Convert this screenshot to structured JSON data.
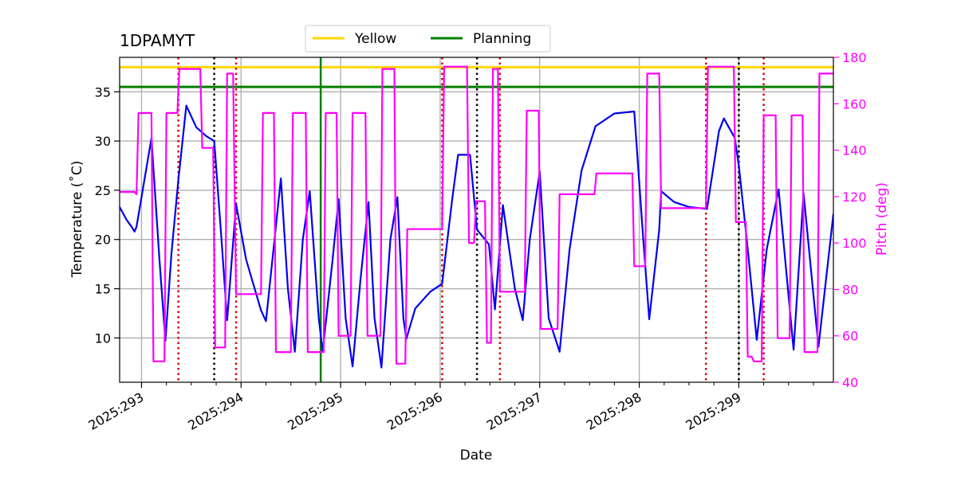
{
  "chart_data": {
    "type": "line",
    "title": "1DPAMYT",
    "xlabel": "Date",
    "ylabel": "Temperature ($^\\circ$C)",
    "ylabel_display": "Temperature (˚C)",
    "y2label": "Pitch (deg)",
    "x_unit": "day-of-year 2025",
    "xlim": [
      292.78,
      299.95
    ],
    "ylim": [
      5.5,
      38.5
    ],
    "y2lim": [
      40,
      180
    ],
    "grid": true,
    "legend_position": "top-center",
    "x_ticks": [
      293,
      294,
      295,
      296,
      297,
      298,
      299
    ],
    "x_tick_labels": [
      "2025:293",
      "2025:294",
      "2025:295",
      "2025:296",
      "2025:297",
      "2025:298",
      "2025:299"
    ],
    "y_ticks": [
      10,
      15,
      20,
      25,
      30,
      35
    ],
    "y2_ticks": [
      40,
      60,
      80,
      100,
      120,
      140,
      160,
      180
    ],
    "colors": {
      "temperature": "#0000ee",
      "pitch": "#ff00ff",
      "yellow": "#ffd700",
      "planning": "#008000",
      "red_markers": "#dd0000",
      "black_markers": "#000000",
      "grid": "#b0b0b0"
    },
    "limit_lines": [
      {
        "name": "Yellow",
        "y": 37.5,
        "color": "#ffd700"
      },
      {
        "name": "Planning",
        "y": 35.5,
        "color": "#008000"
      }
    ],
    "now_line": {
      "x": 294.8,
      "color": "#008000"
    },
    "red_dotted_lines": [
      293.37,
      293.95,
      296.02,
      296.6,
      298.67,
      299.25
    ],
    "black_dotted_lines": [
      293.73,
      296.37,
      299.0
    ],
    "legend": [
      "Yellow",
      "Planning"
    ],
    "series": [
      {
        "name": "",
        "axis": "left",
        "color": "#0000ee",
        "points": [
          [
            292.78,
            23.3
          ],
          [
            292.85,
            22.0
          ],
          [
            292.9,
            21.3
          ],
          [
            292.93,
            20.8
          ],
          [
            292.95,
            21.3
          ],
          [
            293.1,
            30.3
          ],
          [
            293.18,
            18.0
          ],
          [
            293.24,
            9.7
          ],
          [
            293.3,
            18.5
          ],
          [
            293.37,
            26.0
          ],
          [
            293.45,
            33.6
          ],
          [
            293.55,
            31.4
          ],
          [
            293.65,
            30.5
          ],
          [
            293.73,
            30.0
          ],
          [
            293.8,
            20.5
          ],
          [
            293.86,
            11.8
          ],
          [
            293.95,
            23.6
          ],
          [
            294.05,
            18.0
          ],
          [
            294.2,
            12.8
          ],
          [
            294.25,
            11.7
          ],
          [
            294.4,
            26.2
          ],
          [
            294.47,
            15.0
          ],
          [
            294.54,
            8.6
          ],
          [
            294.62,
            20.0
          ],
          [
            294.69,
            24.9
          ],
          [
            294.78,
            12.0
          ],
          [
            294.82,
            8.6
          ],
          [
            294.92,
            18.0
          ],
          [
            294.98,
            24.1
          ],
          [
            295.05,
            12.0
          ],
          [
            295.12,
            7.1
          ],
          [
            295.2,
            16.0
          ],
          [
            295.28,
            23.8
          ],
          [
            295.34,
            12.0
          ],
          [
            295.41,
            7.0
          ],
          [
            295.5,
            20.0
          ],
          [
            295.57,
            24.3
          ],
          [
            295.63,
            12.0
          ],
          [
            295.66,
            9.9
          ],
          [
            295.75,
            13.0
          ],
          [
            295.9,
            14.7
          ],
          [
            296.02,
            15.5
          ],
          [
            296.12,
            24.0
          ],
          [
            296.18,
            28.6
          ],
          [
            296.3,
            28.6
          ],
          [
            296.37,
            21.0
          ],
          [
            296.45,
            20.0
          ],
          [
            296.49,
            19.5
          ],
          [
            296.55,
            12.9
          ],
          [
            296.63,
            23.5
          ],
          [
            296.75,
            15.0
          ],
          [
            296.83,
            11.8
          ],
          [
            296.9,
            20.0
          ],
          [
            297.0,
            26.9
          ],
          [
            297.09,
            12.0
          ],
          [
            297.2,
            8.6
          ],
          [
            297.3,
            19.0
          ],
          [
            297.42,
            27.0
          ],
          [
            297.56,
            31.5
          ],
          [
            297.75,
            32.8
          ],
          [
            297.95,
            33.0
          ],
          [
            298.04,
            20.0
          ],
          [
            298.1,
            11.9
          ],
          [
            298.2,
            21.0
          ],
          [
            298.22,
            24.9
          ],
          [
            298.35,
            23.8
          ],
          [
            298.5,
            23.3
          ],
          [
            298.68,
            23.1
          ],
          [
            298.8,
            31.0
          ],
          [
            298.85,
            32.3
          ],
          [
            298.96,
            30.3
          ],
          [
            299.0,
            27.5
          ],
          [
            299.08,
            20.0
          ],
          [
            299.18,
            9.8
          ],
          [
            299.28,
            19.0
          ],
          [
            299.4,
            25.1
          ],
          [
            299.55,
            8.8
          ],
          [
            299.65,
            24.7
          ],
          [
            299.8,
            9.1
          ],
          [
            299.95,
            22.6
          ]
        ]
      },
      {
        "name": "",
        "axis": "right",
        "color": "#ff00ff",
        "points": [
          [
            292.78,
            122
          ],
          [
            292.93,
            122
          ],
          [
            292.95,
            121
          ],
          [
            292.97,
            156
          ],
          [
            293.1,
            156
          ],
          [
            293.12,
            49
          ],
          [
            293.23,
            49
          ],
          [
            293.25,
            156
          ],
          [
            293.36,
            156
          ],
          [
            293.38,
            175
          ],
          [
            293.59,
            175
          ],
          [
            293.61,
            141
          ],
          [
            293.72,
            141
          ],
          [
            293.74,
            55
          ],
          [
            293.84,
            55
          ],
          [
            293.86,
            173
          ],
          [
            293.92,
            173
          ],
          [
            293.95,
            78
          ],
          [
            294.2,
            78
          ],
          [
            294.22,
            156
          ],
          [
            294.33,
            156
          ],
          [
            294.35,
            53
          ],
          [
            294.5,
            53
          ],
          [
            294.52,
            156
          ],
          [
            294.65,
            156
          ],
          [
            294.67,
            53
          ],
          [
            294.83,
            53
          ],
          [
            294.85,
            156
          ],
          [
            294.96,
            156
          ],
          [
            294.98,
            60
          ],
          [
            295.1,
            60
          ],
          [
            295.12,
            156
          ],
          [
            295.25,
            156
          ],
          [
            295.27,
            60
          ],
          [
            295.4,
            60
          ],
          [
            295.42,
            175
          ],
          [
            295.54,
            175
          ],
          [
            295.56,
            48
          ],
          [
            295.65,
            48
          ],
          [
            295.67,
            106
          ],
          [
            296.02,
            106
          ],
          [
            296.04,
            176
          ],
          [
            296.27,
            176
          ],
          [
            296.29,
            100
          ],
          [
            296.34,
            100
          ],
          [
            296.36,
            118
          ],
          [
            296.45,
            118
          ],
          [
            296.47,
            57
          ],
          [
            296.51,
            57
          ],
          [
            296.53,
            175
          ],
          [
            296.58,
            175
          ],
          [
            296.6,
            79
          ],
          [
            296.85,
            79
          ],
          [
            296.87,
            157
          ],
          [
            296.99,
            157
          ],
          [
            297.01,
            63
          ],
          [
            297.18,
            63
          ],
          [
            297.2,
            121
          ],
          [
            297.55,
            121
          ],
          [
            297.57,
            130
          ],
          [
            297.93,
            130
          ],
          [
            297.95,
            90
          ],
          [
            298.06,
            90
          ],
          [
            298.08,
            173
          ],
          [
            298.2,
            173
          ],
          [
            298.22,
            115
          ],
          [
            298.67,
            115
          ],
          [
            298.69,
            176
          ],
          [
            298.95,
            176
          ],
          [
            298.97,
            109
          ],
          [
            299.07,
            109
          ],
          [
            299.09,
            51
          ],
          [
            299.13,
            51
          ],
          [
            299.15,
            49
          ],
          [
            299.23,
            49
          ],
          [
            299.25,
            155
          ],
          [
            299.37,
            155
          ],
          [
            299.39,
            59
          ],
          [
            299.51,
            59
          ],
          [
            299.53,
            155
          ],
          [
            299.64,
            155
          ],
          [
            299.66,
            53
          ],
          [
            299.79,
            53
          ],
          [
            299.81,
            173
          ],
          [
            299.95,
            173
          ]
        ]
      }
    ]
  }
}
